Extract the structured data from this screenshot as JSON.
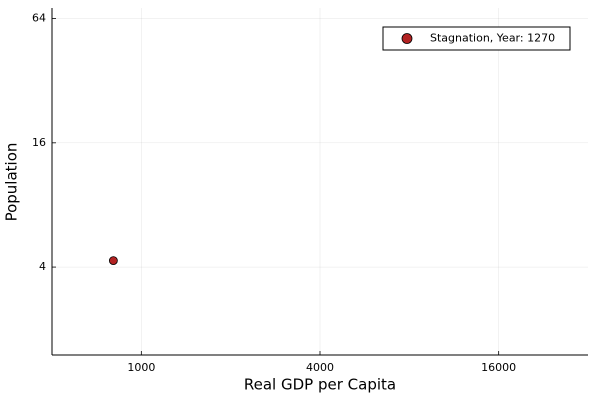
{
  "chart_data": {
    "type": "scatter",
    "x_label": "Real GDP per Capita",
    "y_label": "Population",
    "series": [
      {
        "name": "Stagnation, Year: 1270",
        "color": "#b22222",
        "x": [
          805
        ],
        "values": [
          4.3
        ]
      }
    ],
    "xlim": [
      500,
      32000
    ],
    "xticks": [
      1000,
      4000,
      16000
    ],
    "x_log": true,
    "ylim": [
      1.5,
      72
    ],
    "yticks": [
      4,
      16,
      64
    ],
    "y_log": true,
    "grid": true,
    "legend": "top-right"
  }
}
